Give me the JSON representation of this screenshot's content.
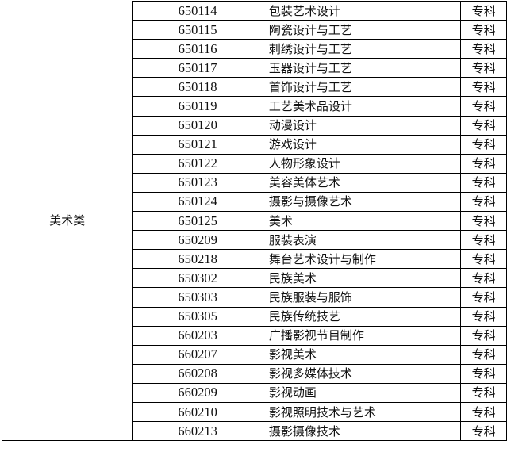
{
  "category": "美术类",
  "rows": [
    {
      "code": "650114",
      "name": "包装艺术设计",
      "level": "专科"
    },
    {
      "code": "650115",
      "name": "陶瓷设计与工艺",
      "level": "专科"
    },
    {
      "code": "650116",
      "name": "刺绣设计与工艺",
      "level": "专科"
    },
    {
      "code": "650117",
      "name": "玉器设计与工艺",
      "level": "专科"
    },
    {
      "code": "650118",
      "name": "首饰设计与工艺",
      "level": "专科"
    },
    {
      "code": "650119",
      "name": "工艺美术品设计",
      "level": "专科"
    },
    {
      "code": "650120",
      "name": "动漫设计",
      "level": "专科"
    },
    {
      "code": "650121",
      "name": "游戏设计",
      "level": "专科"
    },
    {
      "code": "650122",
      "name": "人物形象设计",
      "level": "专科"
    },
    {
      "code": "650123",
      "name": "美容美体艺术",
      "level": "专科"
    },
    {
      "code": "650124",
      "name": "摄影与摄像艺术",
      "level": "专科"
    },
    {
      "code": "650125",
      "name": "美术",
      "level": "专科"
    },
    {
      "code": "650209",
      "name": "服装表演",
      "level": "专科"
    },
    {
      "code": "650218",
      "name": "舞台艺术设计与制作",
      "level": "专科"
    },
    {
      "code": "650302",
      "name": "民族美术",
      "level": "专科"
    },
    {
      "code": "650303",
      "name": "民族服装与服饰",
      "level": "专科"
    },
    {
      "code": "650305",
      "name": "民族传统技艺",
      "level": "专科"
    },
    {
      "code": "660203",
      "name": "广播影视节目制作",
      "level": "专科"
    },
    {
      "code": "660207",
      "name": "影视美术",
      "level": "专科"
    },
    {
      "code": "660208",
      "name": "影视多媒体技术",
      "level": "专科"
    },
    {
      "code": "660209",
      "name": "影视动画",
      "level": "专科"
    },
    {
      "code": "660210",
      "name": "影视照明技术与艺术",
      "level": "专科"
    },
    {
      "code": "660213",
      "name": "摄影摄像技术",
      "level": "专科"
    }
  ]
}
